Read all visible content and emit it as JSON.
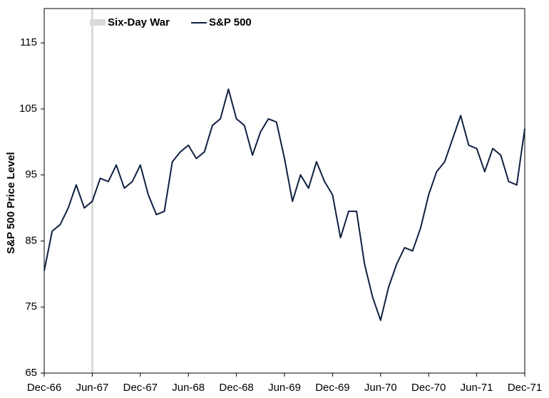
{
  "chart_data": {
    "type": "line",
    "y_label": "S&P 500 Price Level",
    "x": [
      "Dec-66",
      "Jan-67",
      "Feb-67",
      "Mar-67",
      "Apr-67",
      "May-67",
      "Jun-67",
      "Jul-67",
      "Aug-67",
      "Sep-67",
      "Oct-67",
      "Nov-67",
      "Dec-67",
      "Jan-68",
      "Feb-68",
      "Mar-68",
      "Apr-68",
      "May-68",
      "Jun-68",
      "Jul-68",
      "Aug-68",
      "Sep-68",
      "Oct-68",
      "Nov-68",
      "Dec-68",
      "Jan-69",
      "Feb-69",
      "Mar-69",
      "Apr-69",
      "May-69",
      "Jun-69",
      "Jul-69",
      "Aug-69",
      "Sep-69",
      "Oct-69",
      "Nov-69",
      "Dec-69",
      "Jan-70",
      "Feb-70",
      "Mar-70",
      "Apr-70",
      "May-70",
      "Jun-70",
      "Jul-70",
      "Aug-70",
      "Sep-70",
      "Oct-70",
      "Nov-70",
      "Dec-70",
      "Jan-71",
      "Feb-71",
      "Mar-71",
      "Apr-71",
      "May-71",
      "Jun-71",
      "Jul-71",
      "Aug-71",
      "Sep-71",
      "Oct-71",
      "Nov-71",
      "Dec-71"
    ],
    "series": [
      {
        "name": "S&P 500",
        "color": "#0f2040",
        "values": [
          80.5,
          86.5,
          87.5,
          90,
          93.5,
          90,
          91,
          94.5,
          94,
          96.5,
          93,
          94,
          96.5,
          92,
          89,
          89.5,
          97,
          98.5,
          99.5,
          97.5,
          98.5,
          102.5,
          103.5,
          108,
          103.5,
          102.5,
          98,
          101.5,
          103.5,
          103,
          97.5,
          91,
          95,
          93,
          97,
          94,
          92,
          85.5,
          89.5,
          89.5,
          81.5,
          76.5,
          73,
          78,
          81.5,
          84,
          83.5,
          87,
          92,
          95.5,
          97,
          100.5,
          104,
          99.5,
          99,
          95.5,
          99,
          98,
          94,
          93.5,
          102
        ]
      }
    ],
    "event": {
      "name": "Six-Day War",
      "x": "Jun-67",
      "color": "#d9d9d9"
    },
    "ylim": [
      65,
      120.2
    ],
    "yticks": [
      65,
      75,
      85,
      95,
      105,
      115
    ]
  }
}
